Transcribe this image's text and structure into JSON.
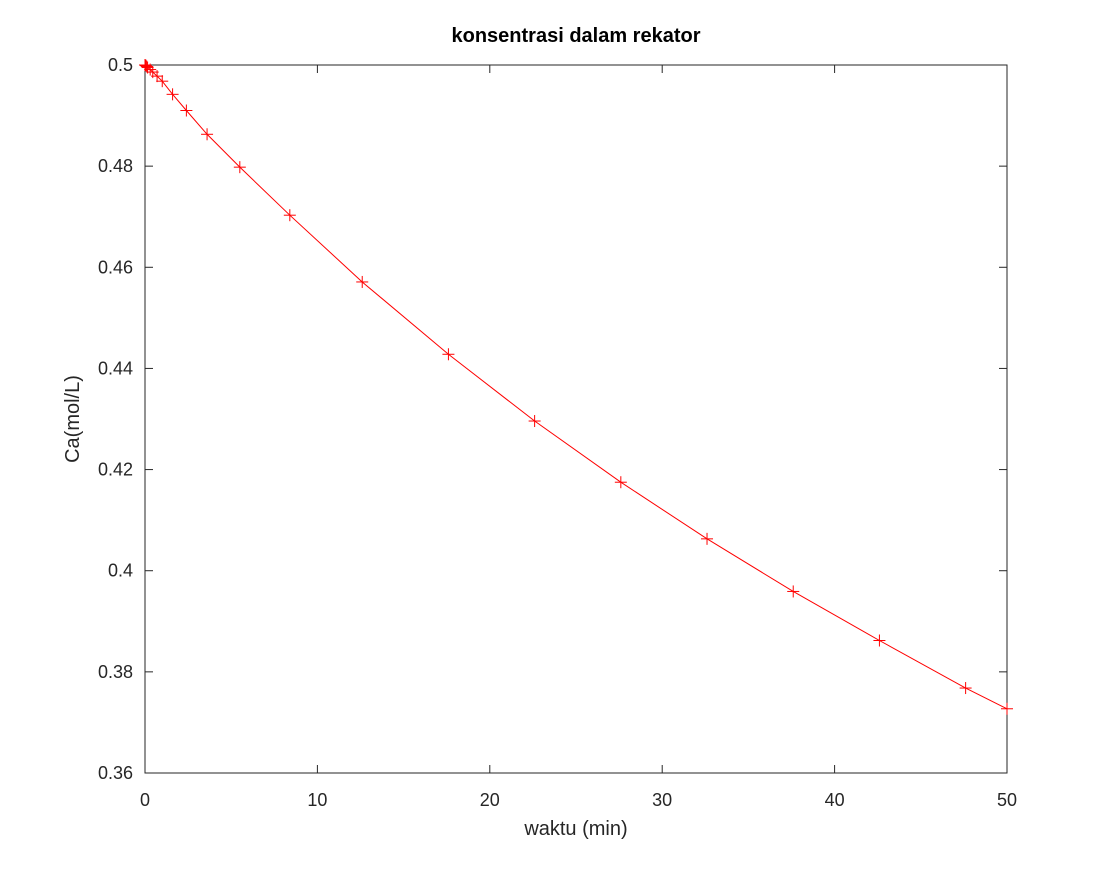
{
  "chart_data": {
    "type": "line",
    "title": "konsentrasi dalam rekator",
    "xlabel": "waktu (min)",
    "ylabel": "Ca(mol/L)",
    "xlim": [
      0,
      50
    ],
    "ylim": [
      0.36,
      0.5
    ],
    "x_ticks": [
      "0",
      "10",
      "20",
      "30",
      "40",
      "50"
    ],
    "y_ticks": [
      "0.36",
      "0.38",
      "0.4",
      "0.42",
      "0.44",
      "0.46",
      "0.48",
      "0.5"
    ],
    "grid": false,
    "legend": "none",
    "marker": "plus",
    "color": "#ff0000",
    "series": [
      {
        "x": [
          0,
          0.05,
          0.1,
          0.15,
          0.3,
          0.45,
          0.7,
          1.0,
          1.6,
          2.4,
          3.6,
          5.5,
          8.4,
          12.6,
          17.6,
          22.6,
          27.6,
          32.6,
          37.6,
          42.6,
          47.6,
          50
        ],
        "y": [
          0.5,
          0.4999,
          0.4997,
          0.4995,
          0.4991,
          0.4986,
          0.4978,
          0.4968,
          0.4942,
          0.491,
          0.4863,
          0.4798,
          0.4703,
          0.4571,
          0.4428,
          0.4296,
          0.4175,
          0.4063,
          0.3959,
          0.3862,
          0.3768,
          0.3727
        ]
      }
    ]
  }
}
